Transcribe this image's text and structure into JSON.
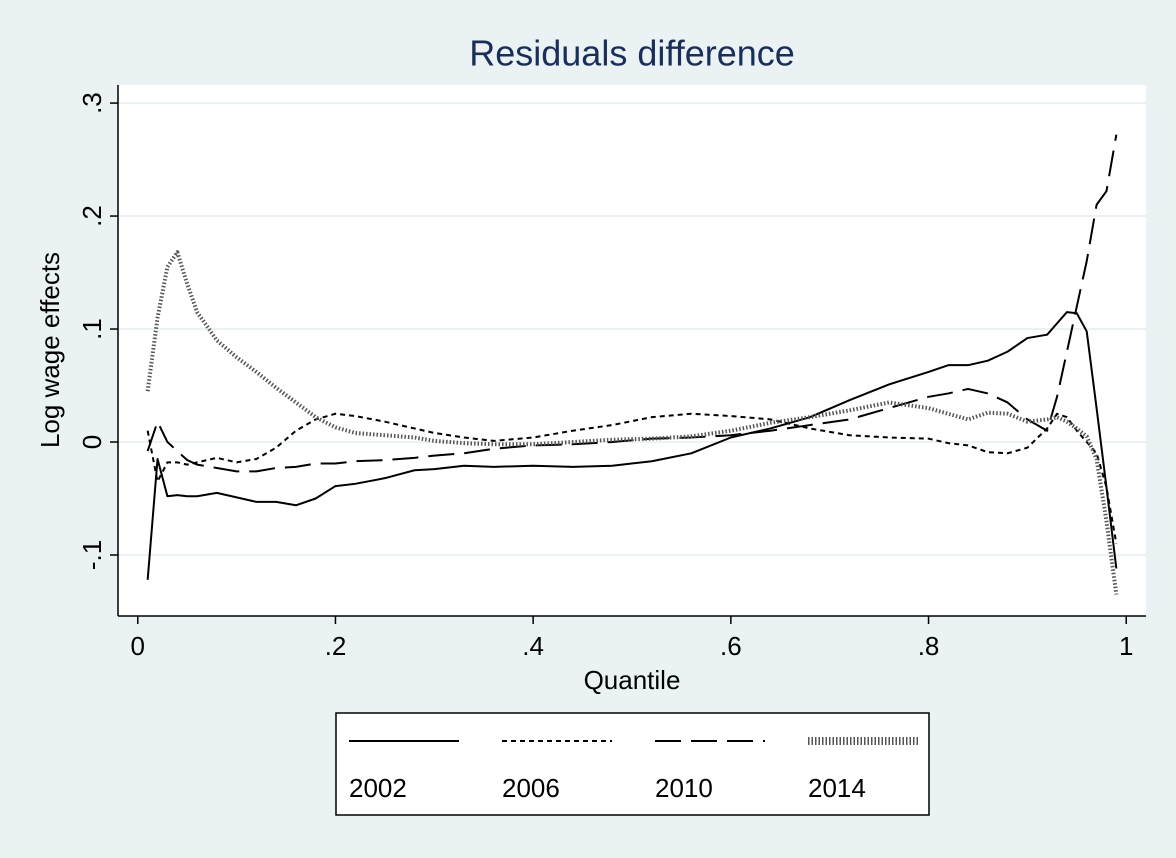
{
  "chart_data": {
    "type": "line",
    "title": "Residuals difference",
    "x_label": "Quantile",
    "y_label": "Log wage effects",
    "x": [
      0.01,
      0.02,
      0.03,
      0.04,
      0.05,
      0.06,
      0.08,
      0.1,
      0.12,
      0.14,
      0.16,
      0.18,
      0.2,
      0.22,
      0.25,
      0.28,
      0.3,
      0.33,
      0.36,
      0.4,
      0.44,
      0.48,
      0.52,
      0.56,
      0.6,
      0.64,
      0.68,
      0.72,
      0.76,
      0.8,
      0.82,
      0.84,
      0.86,
      0.88,
      0.9,
      0.92,
      0.93,
      0.94,
      0.95,
      0.96,
      0.97,
      0.98,
      0.99
    ],
    "series": [
      {
        "name": "2002",
        "color": "#000000",
        "style": "solid",
        "values": [
          -0.122,
          -0.015,
          -0.048,
          -0.047,
          -0.048,
          -0.048,
          -0.045,
          -0.049,
          -0.053,
          -0.053,
          -0.056,
          -0.05,
          -0.039,
          -0.037,
          -0.032,
          -0.025,
          -0.024,
          -0.021,
          -0.022,
          -0.021,
          -0.022,
          -0.021,
          -0.017,
          -0.01,
          0.004,
          0.012,
          0.022,
          0.037,
          0.051,
          0.062,
          0.068,
          0.068,
          0.072,
          0.08,
          0.092,
          0.095,
          0.105,
          0.115,
          0.114,
          0.098,
          0.03,
          -0.04,
          -0.112
        ]
      },
      {
        "name": "2006",
        "color": "#000000",
        "style": "dash",
        "values": [
          0.01,
          -0.035,
          -0.018,
          -0.018,
          -0.02,
          -0.018,
          -0.014,
          -0.018,
          -0.015,
          -0.005,
          0.01,
          0.02,
          0.025,
          0.023,
          0.018,
          0.012,
          0.008,
          0.004,
          0.001,
          0.004,
          0.01,
          0.015,
          0.022,
          0.025,
          0.023,
          0.02,
          0.012,
          0.006,
          0.004,
          0.003,
          -0.001,
          -0.003,
          -0.009,
          -0.01,
          -0.005,
          0.012,
          0.025,
          0.022,
          0.01,
          0.0,
          -0.01,
          -0.04,
          -0.09
        ]
      },
      {
        "name": "2010",
        "color": "#000000",
        "style": "longdash",
        "values": [
          -0.008,
          0.018,
          0.0,
          -0.008,
          -0.016,
          -0.02,
          -0.023,
          -0.026,
          -0.026,
          -0.023,
          -0.022,
          -0.019,
          -0.019,
          -0.017,
          -0.016,
          -0.014,
          -0.012,
          -0.01,
          -0.006,
          -0.003,
          -0.002,
          0.0,
          0.003,
          0.004,
          0.006,
          0.01,
          0.015,
          0.02,
          0.03,
          0.04,
          0.043,
          0.047,
          0.043,
          0.035,
          0.02,
          0.01,
          0.04,
          0.08,
          0.12,
          0.16,
          0.21,
          0.222,
          0.272
        ]
      },
      {
        "name": "2014",
        "color": "#555555",
        "style": "dot",
        "values": [
          0.045,
          0.11,
          0.155,
          0.168,
          0.14,
          0.115,
          0.09,
          0.075,
          0.062,
          0.048,
          0.035,
          0.022,
          0.013,
          0.008,
          0.006,
          0.004,
          0.001,
          -0.001,
          -0.002,
          -0.002,
          0.0,
          0.002,
          0.003,
          0.005,
          0.01,
          0.017,
          0.022,
          0.028,
          0.035,
          0.03,
          0.025,
          0.02,
          0.026,
          0.025,
          0.018,
          0.02,
          0.022,
          0.018,
          0.012,
          0.005,
          -0.015,
          -0.07,
          -0.135
        ]
      }
    ],
    "xlim": [
      -0.02,
      1.02
    ],
    "ylim": [
      -0.154,
      0.316
    ],
    "xticks": [
      0,
      {
        "value": 0.2,
        "label": ".2"
      },
      {
        "value": 0.4,
        "label": ".4"
      },
      {
        "value": 0.6,
        "label": ".6"
      },
      {
        "value": 0.8,
        "label": ".8"
      },
      1
    ],
    "yticks": [
      {
        "value": -0.1,
        "label": "-.1"
      },
      0,
      {
        "value": 0.1,
        "label": ".1"
      },
      {
        "value": 0.2,
        "label": ".2"
      },
      {
        "value": 0.3,
        "label": ".3"
      }
    ],
    "grid": true,
    "legend": "bottom"
  }
}
